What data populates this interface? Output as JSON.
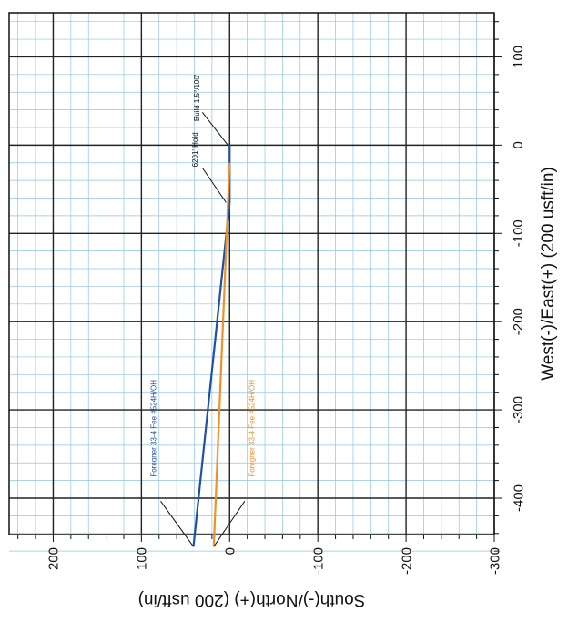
{
  "chart_data": {
    "type": "line",
    "xlabel": "South(-)/North(+) (200 usft/in)",
    "ylabel": "West(-)/East(+) (200 usft/in)",
    "xlim": [
      250,
      -300
    ],
    "ylim": [
      -460,
      150
    ],
    "x_ticks": [
      200,
      100,
      0,
      -100,
      -200,
      -300
    ],
    "y_ticks": [
      100,
      0,
      -100,
      -200,
      -300,
      -400
    ],
    "x_tick_labels": [
      "200",
      "100",
      "0",
      "-100",
      "-200",
      "-300"
    ],
    "y_tick_labels": [
      "100",
      "0",
      "-100",
      "-200",
      "-300",
      "-400"
    ],
    "grid": true,
    "major_grid_step": 100,
    "minor_grid_step": 20,
    "series": [
      {
        "name": "Foregner 33-4 Fee #524H/OH",
        "color": "#1f4fa6",
        "x": [
          0,
          0,
          41
        ],
        "y": [
          0,
          -65,
          -455
        ]
      },
      {
        "name": "Foregner 33-4 Fee #524H/OH",
        "color": "#f0902a",
        "x": [
          0,
          18
        ],
        "y": [
          -20,
          -455
        ]
      }
    ],
    "annotations": [
      {
        "text": "Build 1.5°/100'",
        "x": 2,
        "y": 0
      },
      {
        "text": "6201' Hold",
        "x": 4,
        "y": -65
      }
    ],
    "colors": {
      "background": "#ffffff",
      "major_grid": "#222222",
      "minor_grid": "#8ec6df",
      "axis": "#111111"
    }
  }
}
